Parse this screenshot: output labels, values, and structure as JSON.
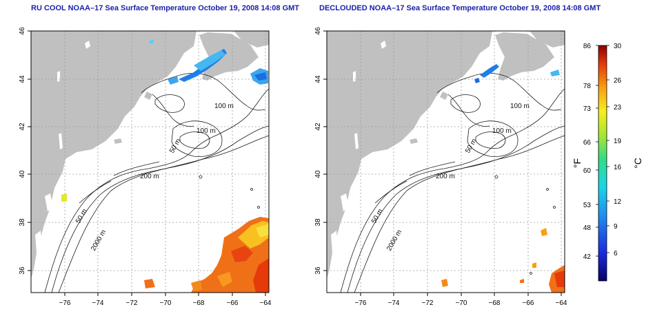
{
  "maps": [
    {
      "title": "RU COOL NOAA–17 Sea Surface Temperature October 19, 2008 14:08 GMT",
      "contour_labels": [
        "100 m",
        "100 m",
        "50 m",
        "200 m",
        "50 m",
        "2000 m"
      ]
    },
    {
      "title": "DECLOUDED NOAA–17 Sea Surface Temperature October 19, 2008 14:08 GMT",
      "contour_labels": [
        "100 m",
        "100 m",
        "50 m",
        "200 m",
        "50 m",
        "2000 m"
      ]
    }
  ],
  "lat_ticks": [
    "46",
    "44",
    "42",
    "40",
    "38",
    "36"
  ],
  "lon_ticks": [
    "−76",
    "−74",
    "−72",
    "−70",
    "−68",
    "−66",
    "−64"
  ],
  "colorbar": {
    "fahrenheit_unit": "°F",
    "celsius_unit": "°C",
    "fahrenheit_ticks": [
      "86",
      "78",
      "73",
      "66",
      "60",
      "53",
      "48",
      "42"
    ],
    "celsius_ticks": [
      "30",
      "26",
      "23",
      "19",
      "16",
      "12",
      "9",
      "6"
    ]
  },
  "colors": {
    "land": "#c0c0c0",
    "title": "#1a22a8",
    "grid": "#9a9a9a"
  }
}
